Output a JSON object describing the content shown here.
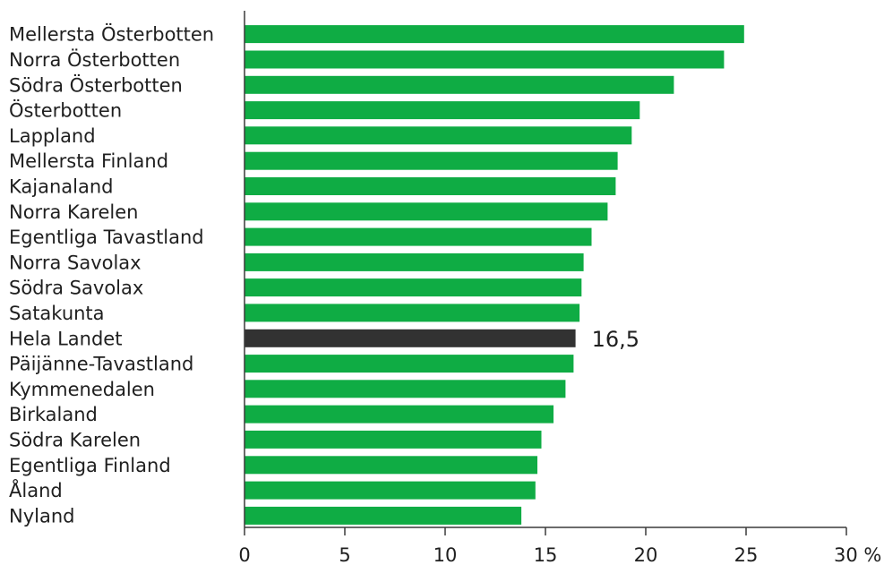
{
  "chart_data": {
    "type": "bar",
    "orientation": "horizontal",
    "categories": [
      "Mellersta Österbotten",
      "Norra Österbotten",
      "Södra Österbotten",
      "Österbotten",
      "Lappland",
      "Mellersta Finland",
      "Kajanaland",
      "Norra Karelen",
      "Egentliga Tavastland",
      "Norra Savolax",
      "Södra Savolax",
      "Satakunta",
      "Hela Landet",
      "Päijänne-Tavastland",
      "Kymmenedalen",
      "Birkaland",
      "Södra Karelen",
      "Egentliga Finland",
      "Åland",
      "Nyland"
    ],
    "values": [
      24.9,
      23.9,
      21.4,
      19.7,
      19.3,
      18.6,
      18.5,
      18.1,
      17.3,
      16.9,
      16.8,
      16.7,
      16.5,
      16.4,
      16.0,
      15.4,
      14.8,
      14.6,
      14.5,
      13.8
    ],
    "highlight_category": "Hela Landet",
    "data_labels": [
      {
        "category": "Hela Landet",
        "text": "16,5"
      }
    ],
    "xlim": [
      0,
      30
    ],
    "x_ticks": [
      0,
      5,
      10,
      15,
      20,
      25,
      30
    ],
    "x_tick_labels": [
      "0",
      "5",
      "10",
      "15",
      "20",
      "25",
      "30 %"
    ],
    "xlabel": "",
    "ylabel": "",
    "grid": false,
    "colors": {
      "bar": "#0fac44",
      "highlight": "#323232",
      "axis": "#3a3a3a",
      "text": "#1f1f1f"
    }
  }
}
